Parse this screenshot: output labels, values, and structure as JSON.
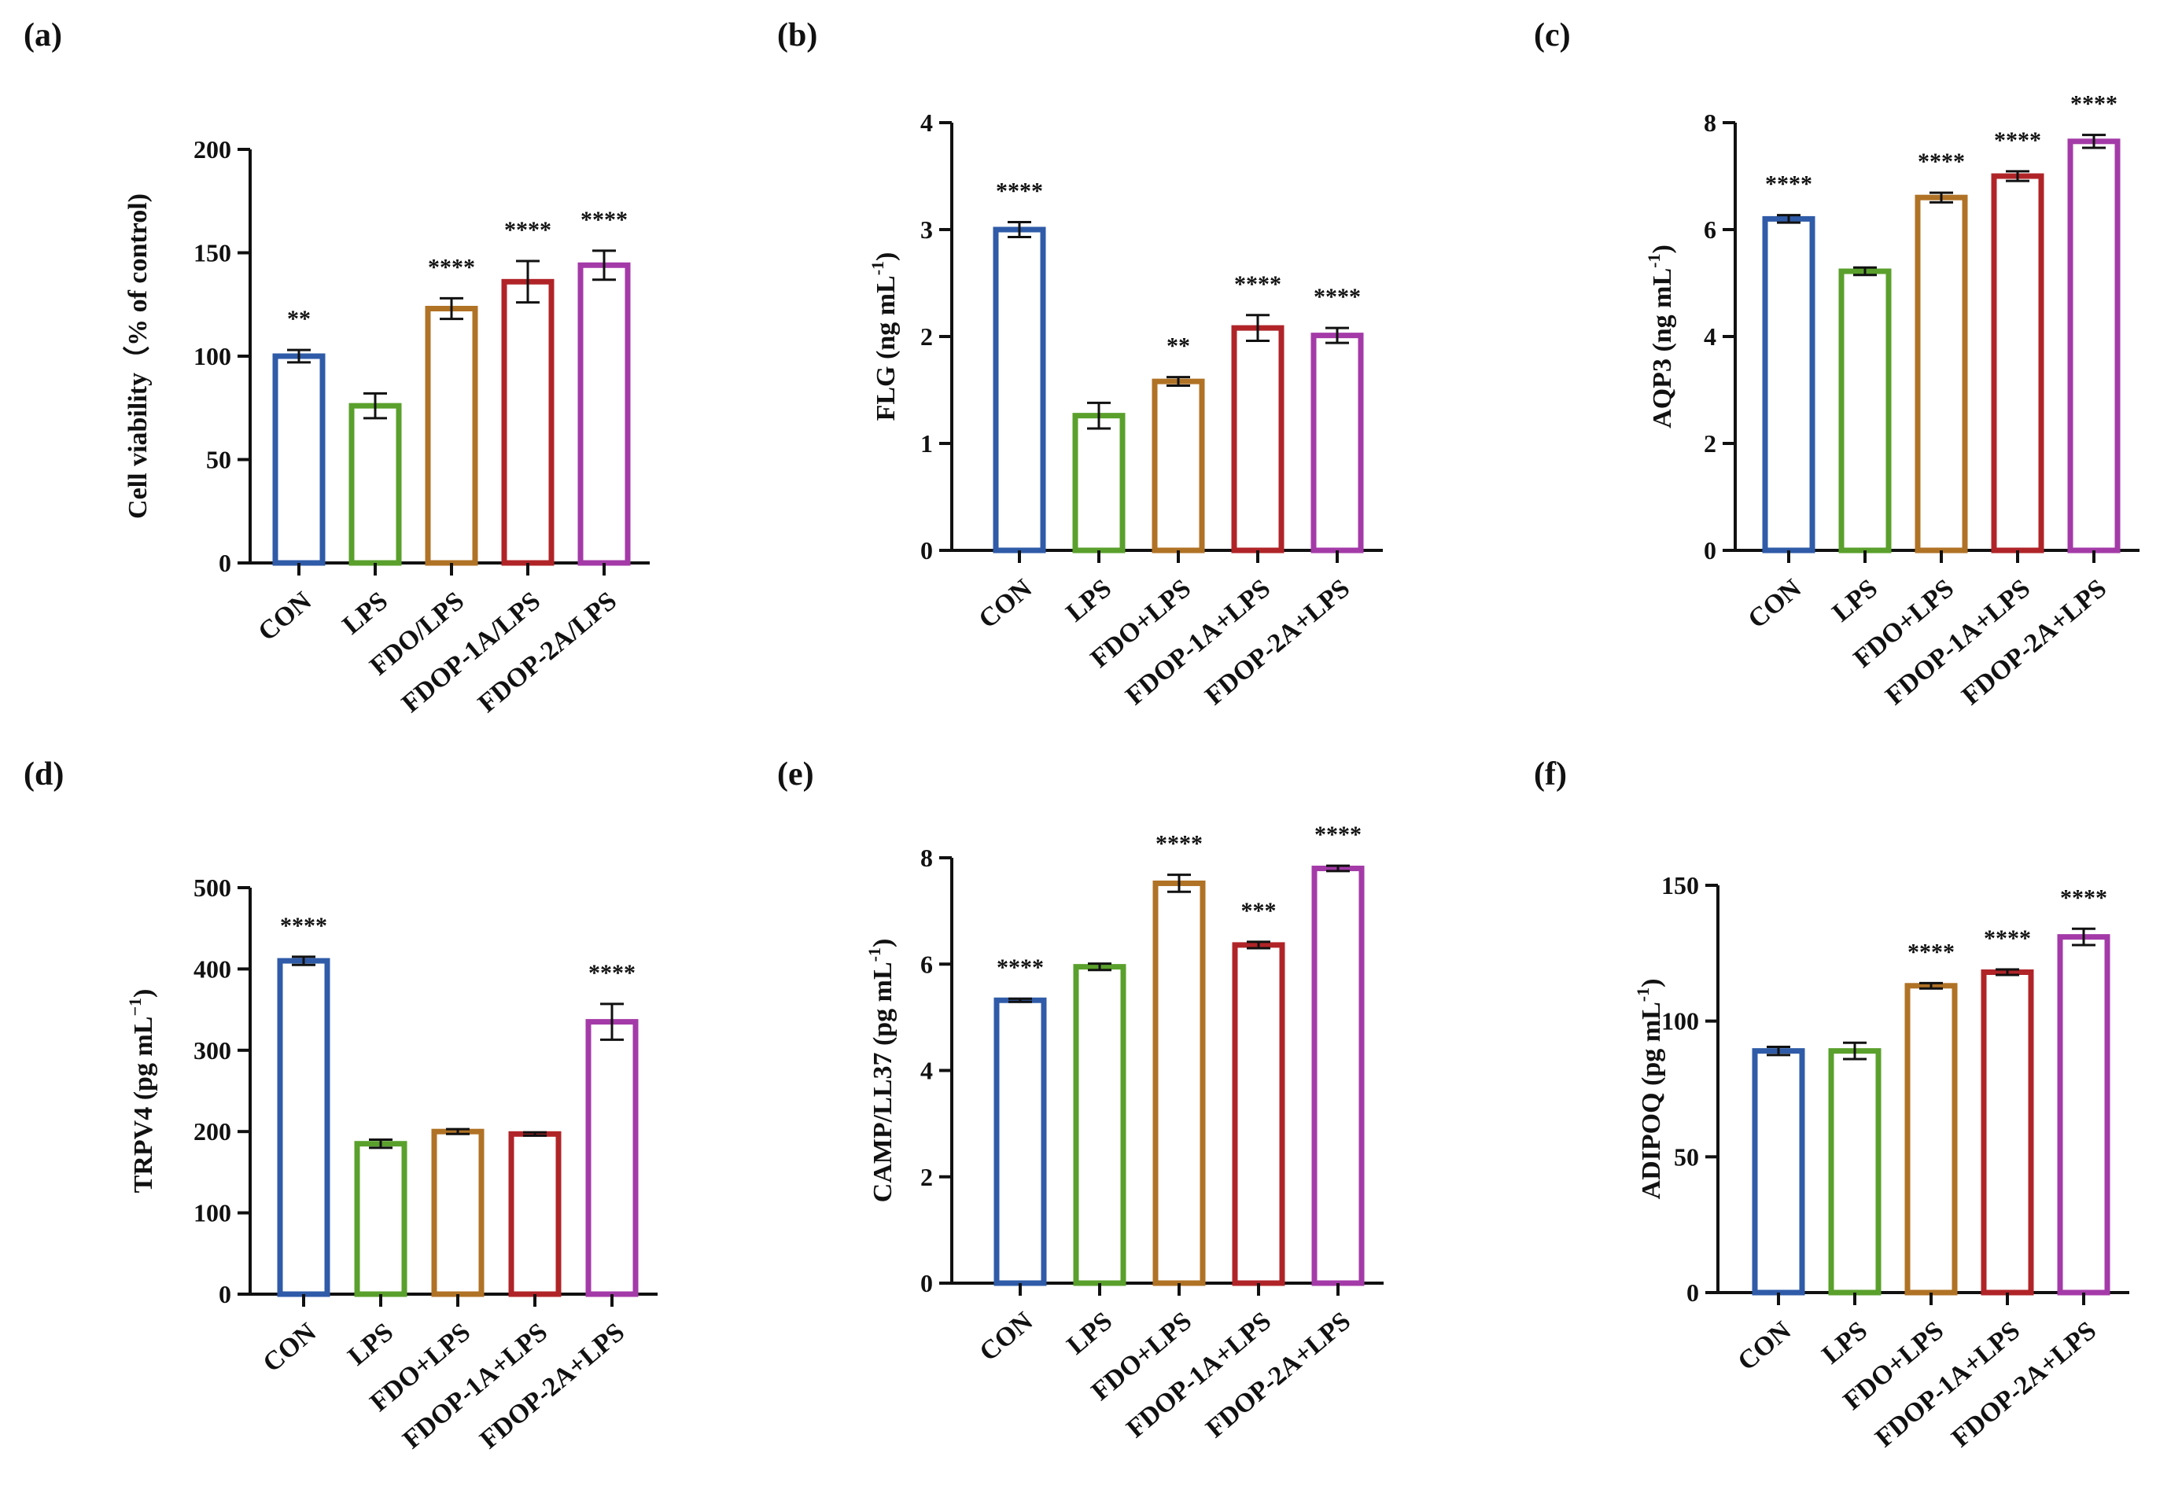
{
  "chart_data": [
    {
      "type": "bar",
      "panel": "(a)",
      "ylabel": "Cell viability（% of control)",
      "ylim": [
        0,
        200
      ],
      "yticks": [
        0,
        50,
        100,
        150,
        200
      ],
      "categories": [
        "CON",
        "LPS",
        "FDO/LPS",
        "FDOP-1A/LPS",
        "FDOP-2A/LPS"
      ],
      "values": [
        100,
        76,
        123,
        136,
        144
      ],
      "errors": [
        3,
        6,
        5,
        10,
        7
      ],
      "significance": [
        "**",
        "",
        "****",
        "****",
        "****"
      ]
    },
    {
      "type": "bar",
      "panel": "(b)",
      "ylabel": "FLG  (ng mL",
      "ylabel_sup": "-1",
      "ylabel_tail": ")",
      "ylim": [
        0,
        4
      ],
      "yticks": [
        0,
        1,
        2,
        3,
        4
      ],
      "categories": [
        "CON",
        "LPS",
        "FDO+LPS",
        "FDOP-1A+LPS",
        "FDOP-2A+LPS"
      ],
      "values": [
        3.0,
        1.26,
        1.58,
        2.08,
        2.01
      ],
      "errors": [
        0.07,
        0.12,
        0.04,
        0.12,
        0.07
      ],
      "significance": [
        "****",
        "",
        "**",
        "****",
        "****"
      ]
    },
    {
      "type": "bar",
      "panel": "(c)",
      "ylabel": "AQP3 (ng mL",
      "ylabel_sup": "-1",
      "ylabel_tail": ")",
      "ylim": [
        0,
        8
      ],
      "yticks": [
        0,
        2,
        4,
        6,
        8
      ],
      "categories": [
        "CON",
        "LPS",
        "FDO+LPS",
        "FDOP-1A+LPS",
        "FDOP-2A+LPS"
      ],
      "values": [
        6.2,
        5.22,
        6.6,
        7.0,
        7.65
      ],
      "errors": [
        0.07,
        0.07,
        0.09,
        0.09,
        0.12
      ],
      "significance": [
        "****",
        "",
        "****",
        "****",
        "****"
      ]
    },
    {
      "type": "bar",
      "panel": "(d)",
      "ylabel": "TRPV4  (pg mL",
      "ylabel_sup": "−1",
      "ylabel_tail": ")",
      "ylim": [
        0,
        500
      ],
      "yticks": [
        0,
        100,
        200,
        300,
        400,
        500
      ],
      "categories": [
        "CON",
        "LPS",
        "FDO+LPS",
        "FDOP-1A+LPS",
        "FDOP-2A+LPS"
      ],
      "values": [
        410,
        185,
        200,
        197,
        335
      ],
      "errors": [
        5,
        5,
        3,
        2,
        22
      ],
      "significance": [
        "****",
        "",
        "",
        "",
        "****"
      ]
    },
    {
      "type": "bar",
      "panel": "(e)",
      "ylabel": "CAMP/LL37  (pg mL",
      "ylabel_sup": "-1",
      "ylabel_tail": ")",
      "ylim": [
        0,
        8
      ],
      "yticks": [
        0,
        2,
        4,
        6,
        8
      ],
      "categories": [
        "CON",
        "LPS",
        "FDO+LPS",
        "FDOP-1A+LPS",
        "FDOP-2A+LPS"
      ],
      "values": [
        5.32,
        5.95,
        7.52,
        6.36,
        7.8
      ],
      "errors": [
        0.03,
        0.06,
        0.16,
        0.06,
        0.05
      ],
      "significance": [
        "****",
        "",
        "****",
        "***",
        "****"
      ]
    },
    {
      "type": "bar",
      "panel": "(f)",
      "ylabel": "ADIPOQ  (pg mL",
      "ylabel_sup": "-1",
      "ylabel_tail": ")",
      "ylim": [
        0,
        150
      ],
      "yticks": [
        0,
        50,
        100,
        150
      ],
      "categories": [
        "CON",
        "LPS",
        "FDO+LPS",
        "FDOP-1A+LPS",
        "FDOP-2A+LPS"
      ],
      "values": [
        89,
        89,
        113,
        118,
        131
      ],
      "errors": [
        1.5,
        3,
        1,
        1,
        3
      ],
      "significance": [
        "",
        "",
        "****",
        "****",
        "****"
      ]
    }
  ],
  "bar_colors": [
    "#2f5ba8",
    "#5aa02c",
    "#b07225",
    "#b02428",
    "#a43aa8"
  ]
}
